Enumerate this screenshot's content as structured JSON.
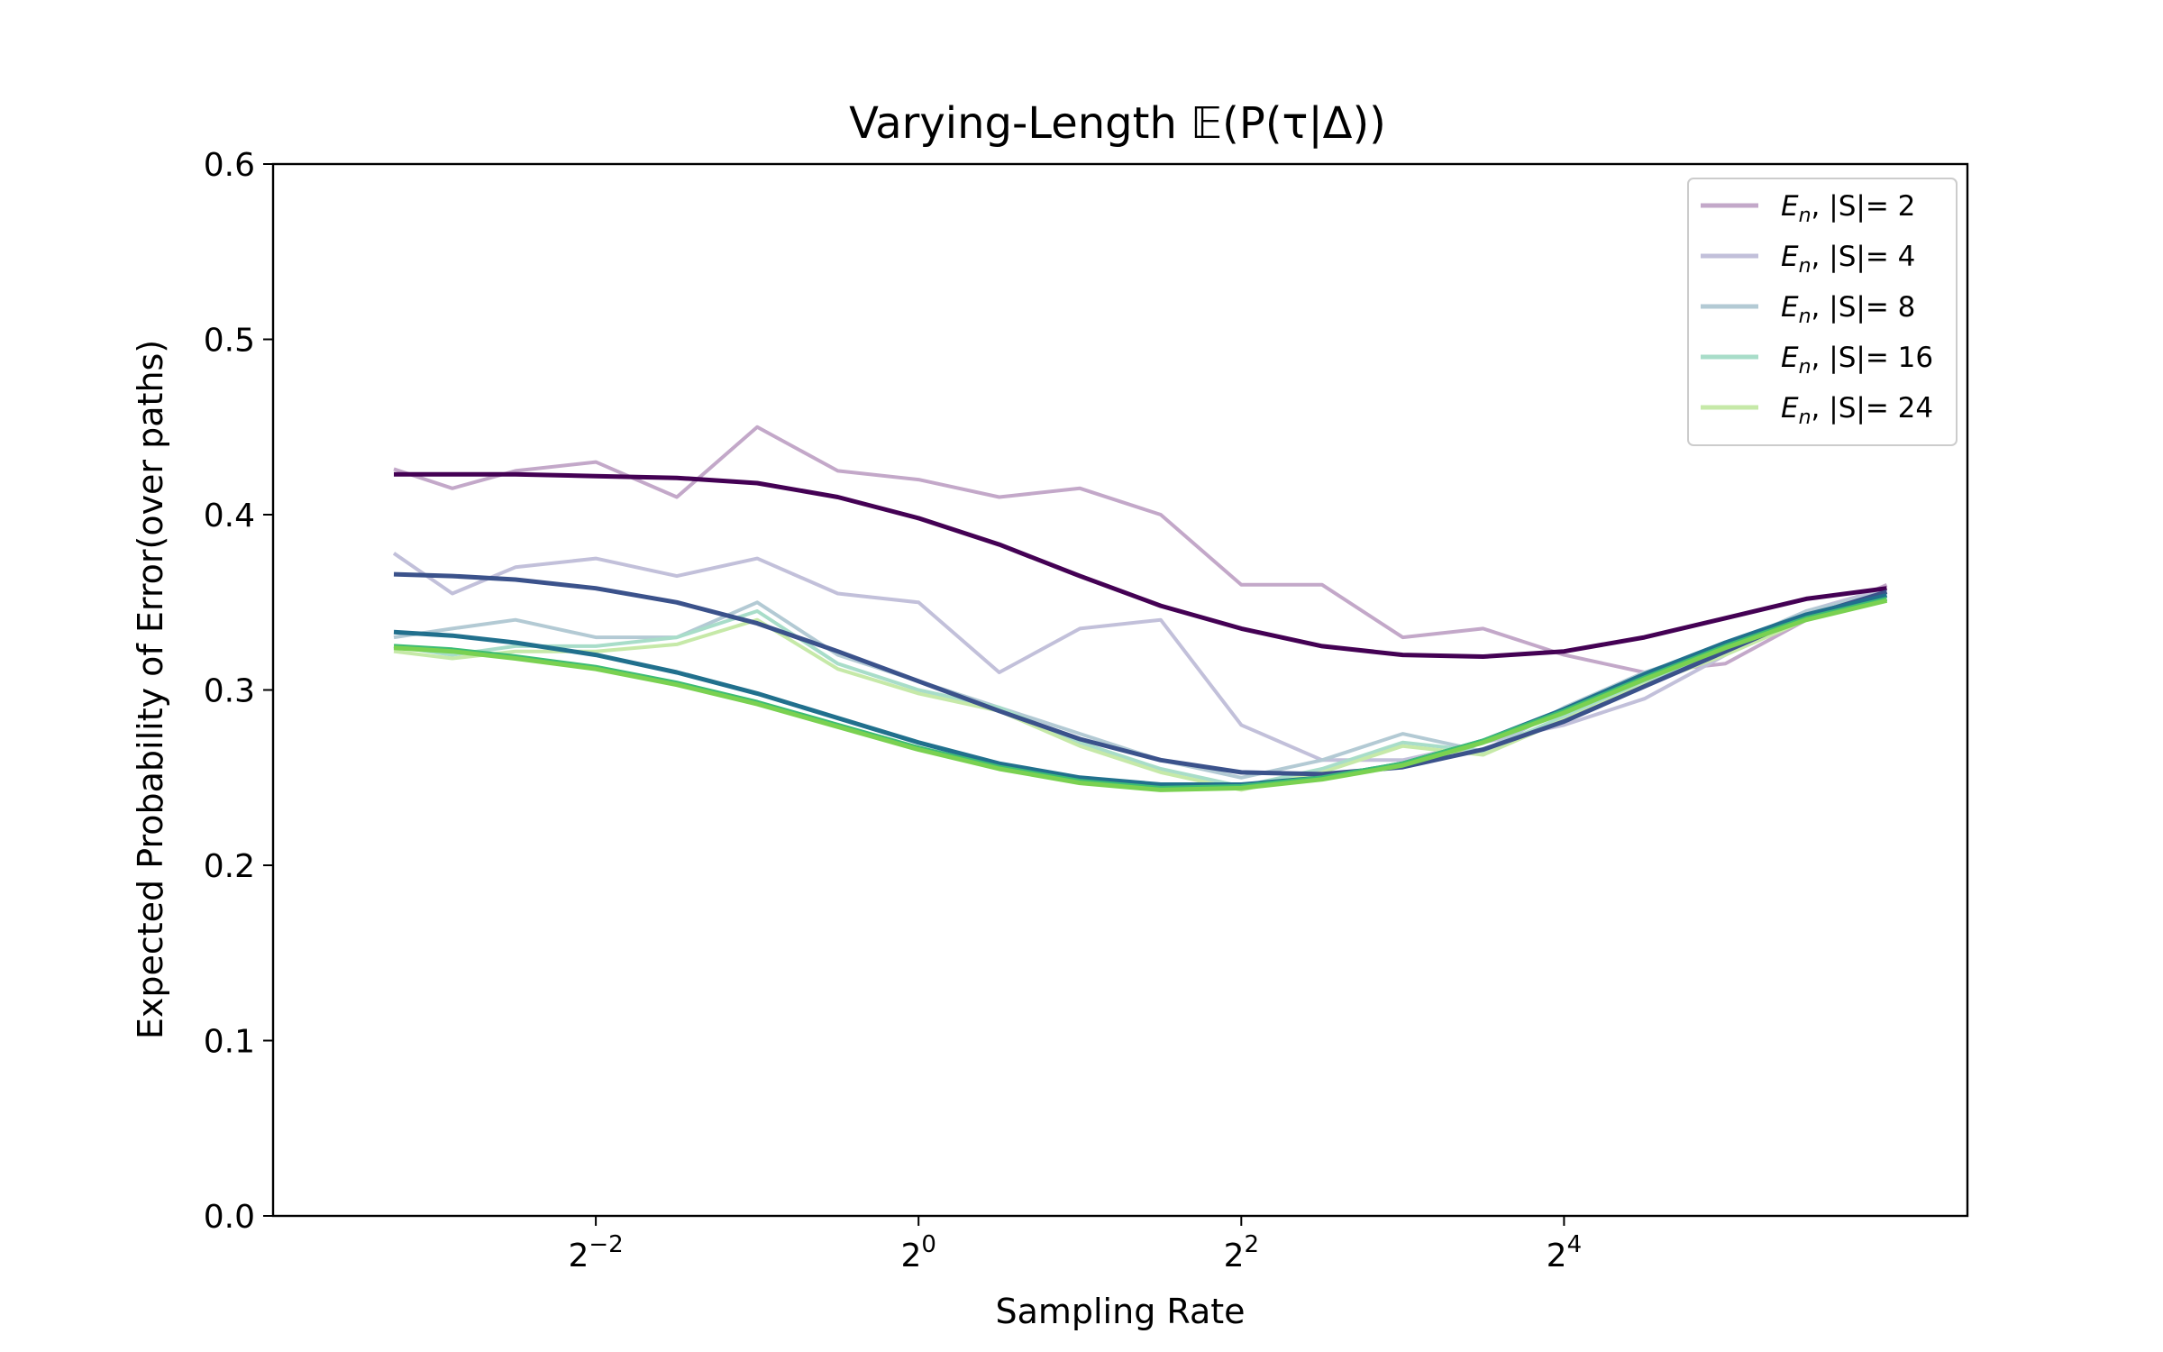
{
  "chart_data": {
    "type": "line",
    "title": "Varying-Length 𝔼(P(τ|Δ))",
    "xlabel": "Sampling Rate",
    "ylabel": "Expected Probability of Error(over paths)",
    "x_scale": "log2",
    "xlim": [
      0.0625,
      90.5
    ],
    "ylim": [
      0.0,
      0.6
    ],
    "xticks": [
      {
        "value": 0.25,
        "base": "2",
        "exp": "−2"
      },
      {
        "value": 1,
        "base": "2",
        "exp": "0"
      },
      {
        "value": 4,
        "base": "2",
        "exp": "2"
      },
      {
        "value": 16,
        "base": "2",
        "exp": "4"
      }
    ],
    "yticks": [
      "0.0",
      "0.1",
      "0.2",
      "0.3",
      "0.4",
      "0.5",
      "0.6"
    ],
    "grid": false,
    "legend_position": "upper right",
    "series": [
      {
        "name": "E_n, |S|= 2",
        "legend": {
          "base": "E",
          "sub": "n",
          "rest": ", |S|= 2"
        },
        "raw_color": "#c3a8c9",
        "fit_color": "#440154",
        "x": [
          0.105,
          0.135,
          0.177,
          0.25,
          0.354,
          0.5,
          0.707,
          1.0,
          1.414,
          2.0,
          2.83,
          4.0,
          5.66,
          8.0,
          11.3,
          16.0,
          22.6,
          32.0,
          45.3,
          64.0
        ],
        "y_raw": [
          0.426,
          0.415,
          0.425,
          0.43,
          0.41,
          0.45,
          0.425,
          0.42,
          0.41,
          0.415,
          0.4,
          0.36,
          0.36,
          0.33,
          0.335,
          0.32,
          0.31,
          0.315,
          0.34,
          0.36
        ],
        "y_fit": [
          0.423,
          0.423,
          0.423,
          0.422,
          0.421,
          0.418,
          0.41,
          0.398,
          0.383,
          0.365,
          0.348,
          0.335,
          0.325,
          0.32,
          0.319,
          0.322,
          0.33,
          0.341,
          0.352,
          0.358
        ]
      },
      {
        "name": "E_n, |S|= 4",
        "legend": {
          "base": "E",
          "sub": "n",
          "rest": ", |S|= 4"
        },
        "raw_color": "#c2c0da",
        "fit_color": "#3b528b",
        "x": [
          0.105,
          0.135,
          0.177,
          0.25,
          0.354,
          0.5,
          0.707,
          1.0,
          1.414,
          2.0,
          2.83,
          4.0,
          5.66,
          8.0,
          11.3,
          16.0,
          22.6,
          32.0,
          45.3,
          64.0
        ],
        "y_raw": [
          0.378,
          0.355,
          0.37,
          0.375,
          0.365,
          0.375,
          0.355,
          0.35,
          0.31,
          0.335,
          0.34,
          0.28,
          0.26,
          0.26,
          0.27,
          0.28,
          0.295,
          0.32,
          0.345,
          0.358
        ],
        "y_fit": [
          0.366,
          0.365,
          0.363,
          0.358,
          0.35,
          0.338,
          0.322,
          0.305,
          0.288,
          0.272,
          0.26,
          0.253,
          0.252,
          0.256,
          0.266,
          0.282,
          0.302,
          0.322,
          0.342,
          0.356
        ]
      },
      {
        "name": "E_n, |S|= 8",
        "legend": {
          "base": "E",
          "sub": "n",
          "rest": ", |S|= 8"
        },
        "raw_color": "#b3cad4",
        "fit_color": "#21708d",
        "x": [
          0.105,
          0.135,
          0.177,
          0.25,
          0.354,
          0.5,
          0.707,
          1.0,
          1.414,
          2.0,
          2.83,
          4.0,
          5.66,
          8.0,
          11.3,
          16.0,
          22.6,
          32.0,
          45.3,
          64.0
        ],
        "y_raw": [
          0.33,
          0.335,
          0.34,
          0.33,
          0.33,
          0.35,
          0.32,
          0.305,
          0.29,
          0.275,
          0.26,
          0.25,
          0.26,
          0.275,
          0.265,
          0.29,
          0.31,
          0.325,
          0.345,
          0.356
        ],
        "y_fit": [
          0.333,
          0.331,
          0.327,
          0.32,
          0.31,
          0.298,
          0.284,
          0.27,
          0.258,
          0.25,
          0.246,
          0.246,
          0.25,
          0.258,
          0.271,
          0.289,
          0.309,
          0.327,
          0.343,
          0.354
        ]
      },
      {
        "name": "E_n, |S|= 16",
        "legend": {
          "base": "E",
          "sub": "n",
          "rest": ", |S|= 16"
        },
        "raw_color": "#a8ddc9",
        "fit_color": "#3cbc74",
        "x": [
          0.105,
          0.135,
          0.177,
          0.25,
          0.354,
          0.5,
          0.707,
          1.0,
          1.414,
          2.0,
          2.83,
          4.0,
          5.66,
          8.0,
          11.3,
          16.0,
          22.6,
          32.0,
          45.3,
          64.0
        ],
        "y_raw": [
          0.325,
          0.32,
          0.325,
          0.325,
          0.33,
          0.345,
          0.315,
          0.3,
          0.29,
          0.27,
          0.255,
          0.245,
          0.255,
          0.27,
          0.265,
          0.285,
          0.305,
          0.322,
          0.343,
          0.354
        ],
        "y_fit": [
          0.325,
          0.323,
          0.319,
          0.313,
          0.304,
          0.293,
          0.28,
          0.267,
          0.256,
          0.248,
          0.244,
          0.245,
          0.25,
          0.258,
          0.271,
          0.288,
          0.307,
          0.325,
          0.341,
          0.352
        ]
      },
      {
        "name": "E_n, |S|= 24",
        "legend": {
          "base": "E",
          "sub": "n",
          "rest": ", |S|= 24"
        },
        "raw_color": "#c6e9a8",
        "fit_color": "#7ad151",
        "x": [
          0.105,
          0.135,
          0.177,
          0.25,
          0.354,
          0.5,
          0.707,
          1.0,
          1.414,
          2.0,
          2.83,
          4.0,
          5.66,
          8.0,
          11.3,
          16.0,
          22.6,
          32.0,
          45.3,
          64.0
        ],
        "y_raw": [
          0.322,
          0.318,
          0.322,
          0.322,
          0.326,
          0.34,
          0.312,
          0.298,
          0.288,
          0.268,
          0.253,
          0.243,
          0.253,
          0.268,
          0.263,
          0.283,
          0.303,
          0.32,
          0.34,
          0.352
        ],
        "y_fit": [
          0.324,
          0.322,
          0.318,
          0.312,
          0.303,
          0.292,
          0.279,
          0.266,
          0.255,
          0.247,
          0.243,
          0.244,
          0.249,
          0.257,
          0.27,
          0.287,
          0.306,
          0.324,
          0.34,
          0.351
        ]
      }
    ]
  }
}
